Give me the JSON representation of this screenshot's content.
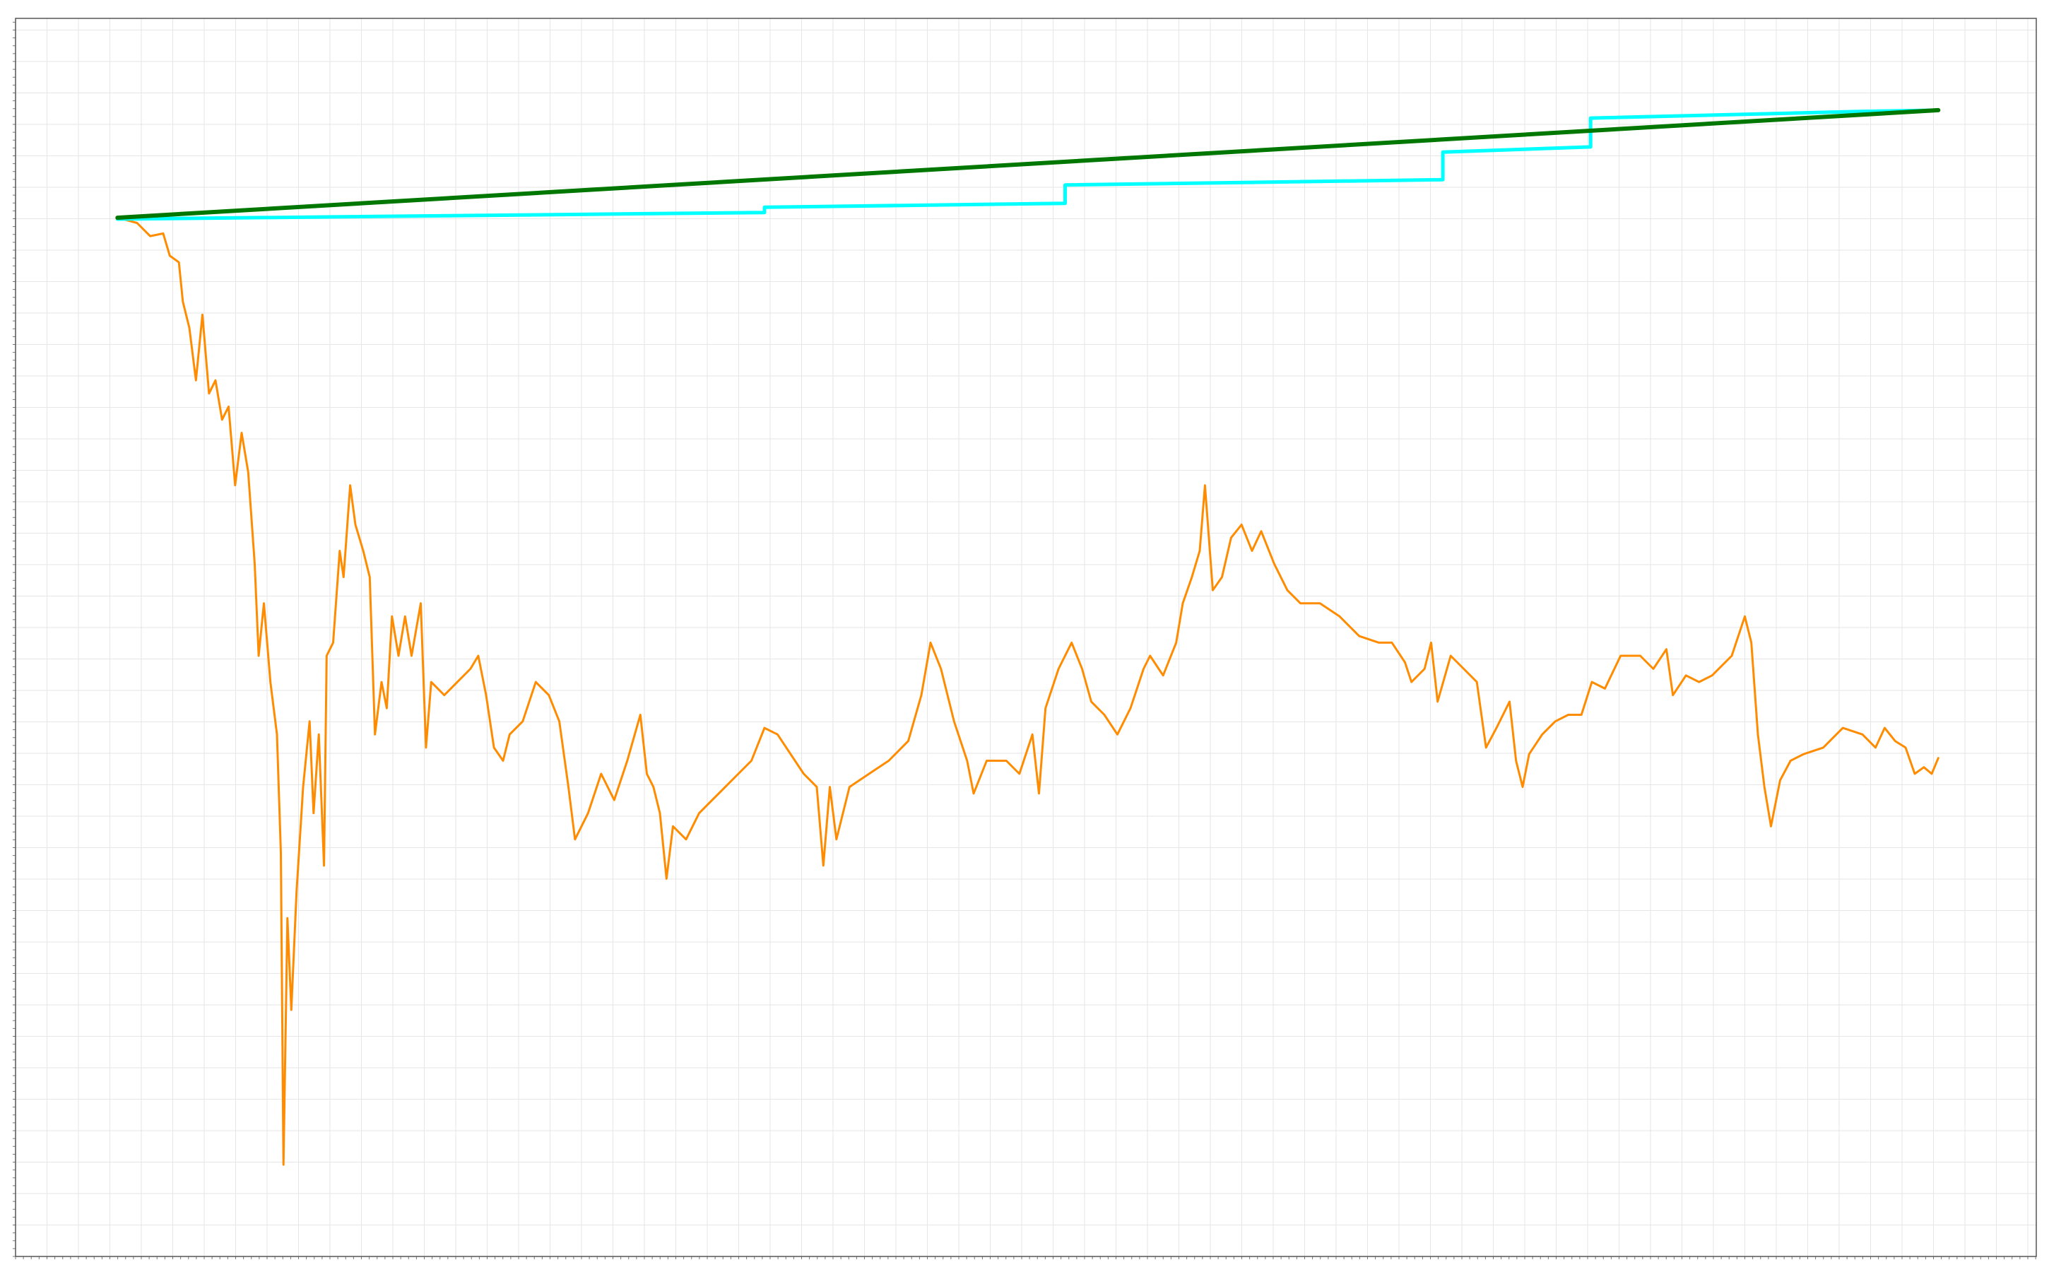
{
  "chart_data": {
    "type": "line",
    "grid": true,
    "xlim": [
      0,
      1546
    ],
    "ylim": [
      0,
      944
    ],
    "series": [
      {
        "color": "#ff8c00",
        "x": [
          78,
          93,
          103,
          113,
          118,
          125,
          128,
          133,
          138,
          143,
          148,
          153,
          158,
          163,
          168,
          173,
          178,
          183,
          186,
          190,
          195,
          200,
          203,
          205,
          208,
          211,
          215,
          220,
          225,
          228,
          232,
          236,
          238,
          243,
          248,
          251,
          256,
          260,
          266,
          271,
          275,
          280,
          284,
          288,
          293,
          298,
          303,
          310,
          314,
          318,
          328,
          338,
          348,
          354,
          360,
          366,
          373,
          378,
          388,
          398,
          408,
          416,
          423,
          428,
          438,
          448,
          458,
          468,
          478,
          483,
          488,
          493,
          498,
          503,
          513,
          523,
          533,
          543,
          553,
          563,
          573,
          583,
          593,
          603,
          613,
          618,
          623,
          628,
          638,
          653,
          668,
          683,
          693,
          700,
          708,
          718,
          728,
          733,
          743,
          758,
          768,
          778,
          783,
          788,
          798,
          808,
          816,
          823,
          833,
          843,
          853,
          863,
          868,
          878,
          888,
          893,
          900,
          906,
          910,
          916,
          923,
          930,
          938,
          946,
          953,
          963,
          973,
          983,
          998,
          1013,
          1028,
          1043,
          1053,
          1063,
          1068,
          1078,
          1083,
          1088,
          1098,
          1108,
          1118,
          1125,
          1133,
          1143,
          1148,
          1153,
          1158,
          1168,
          1178,
          1188,
          1198,
          1206,
          1216,
          1228,
          1243,
          1253,
          1263,
          1268,
          1278,
          1288,
          1298,
          1313,
          1323,
          1328,
          1333,
          1338,
          1343,
          1350,
          1358,
          1368,
          1383,
          1398,
          1413,
          1423,
          1430,
          1438,
          1446,
          1453,
          1460,
          1466,
          1471
        ],
        "values": [
          792,
          788,
          778,
          780,
          763,
          758,
          728,
          708,
          668,
          718,
          658,
          668,
          638,
          648,
          588,
          628,
          598,
          528,
          458,
          498,
          438,
          398,
          308,
          70,
          258,
          188,
          278,
          358,
          408,
          338,
          398,
          298,
          458,
          468,
          538,
          518,
          588,
          558,
          538,
          518,
          398,
          438,
          418,
          488,
          458,
          488,
          458,
          498,
          388,
          438,
          428,
          438,
          448,
          458,
          428,
          388,
          378,
          398,
          408,
          438,
          428,
          408,
          358,
          318,
          338,
          368,
          348,
          378,
          413,
          368,
          358,
          338,
          288,
          328,
          318,
          338,
          348,
          358,
          368,
          378,
          403,
          398,
          383,
          368,
          358,
          298,
          358,
          318,
          358,
          368,
          378,
          393,
          428,
          468,
          448,
          408,
          378,
          353,
          378,
          378,
          368,
          398,
          353,
          418,
          448,
          468,
          448,
          423,
          413,
          398,
          418,
          448,
          458,
          443,
          468,
          498,
          518,
          538,
          588,
          508,
          518,
          548,
          558,
          538,
          553,
          528,
          508,
          498,
          498,
          488,
          473,
          468,
          468,
          453,
          438,
          448,
          468,
          423,
          458,
          448,
          438,
          388,
          403,
          423,
          378,
          358,
          383,
          398,
          408,
          413,
          413,
          438,
          433,
          458,
          458,
          448,
          463,
          428,
          443,
          438,
          443,
          458,
          488,
          468,
          398,
          358,
          328,
          363,
          378,
          383,
          388,
          403,
          398,
          388,
          403,
          393,
          388,
          368,
          373,
          368,
          380
        ]
      },
      {
        "color": "#00ffff",
        "x": [
          78,
          573,
          573,
          803,
          803,
          1092,
          1092,
          1205,
          1205,
          1410,
          1471
        ],
        "values": [
          791,
          796,
          800,
          803,
          817,
          821,
          842,
          846,
          868,
          873,
          874
        ]
      },
      {
        "color": "#007700",
        "x": [
          78,
          1471
        ],
        "values": [
          792,
          874
        ]
      }
    ]
  }
}
